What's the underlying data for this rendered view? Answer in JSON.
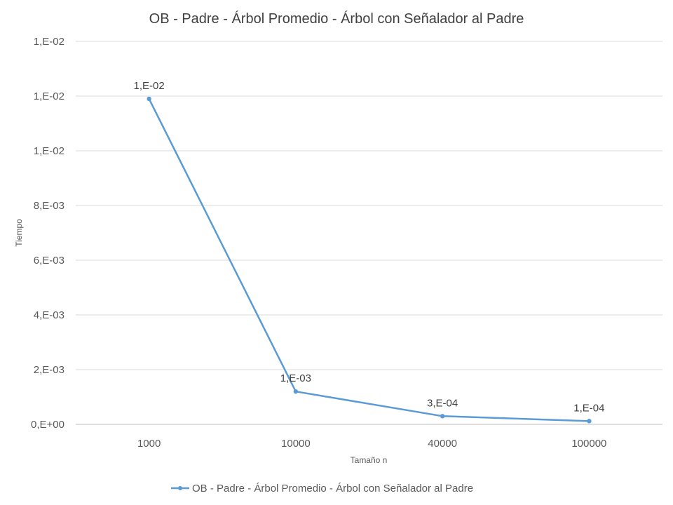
{
  "chart_data": {
    "type": "line",
    "title": "OB - Padre - Árbol Promedio - Árbol con Señalador al Padre",
    "xlabel": "Tamaño n",
    "ylabel": "Tiempo",
    "categories": [
      "1000",
      "10000",
      "40000",
      "100000"
    ],
    "series": [
      {
        "name": "OB - Padre - Árbol Promedio - Árbol con Señalador al Padre",
        "values": [
          0.0119,
          0.0012,
          0.0003,
          0.00012
        ],
        "labels": [
          "1,E-02",
          "1,E-03",
          "3,E-04",
          "1,E-04"
        ],
        "color": "#5B9BD5"
      }
    ],
    "ylim": [
      0,
      0.014
    ],
    "yticks": [
      0,
      0.002,
      0.004,
      0.006,
      0.008,
      0.01,
      0.012,
      0.014
    ],
    "ytick_labels": [
      "0,E+00",
      "2,E-03",
      "4,E-03",
      "6,E-03",
      "8,E-03",
      "1,E-02",
      "1,E-02",
      "1,E-02"
    ],
    "grid": true,
    "legend_position": "bottom",
    "colors": {
      "series": "#5B9BD5",
      "grid": "#d9d9d9",
      "text": "#595959"
    }
  }
}
